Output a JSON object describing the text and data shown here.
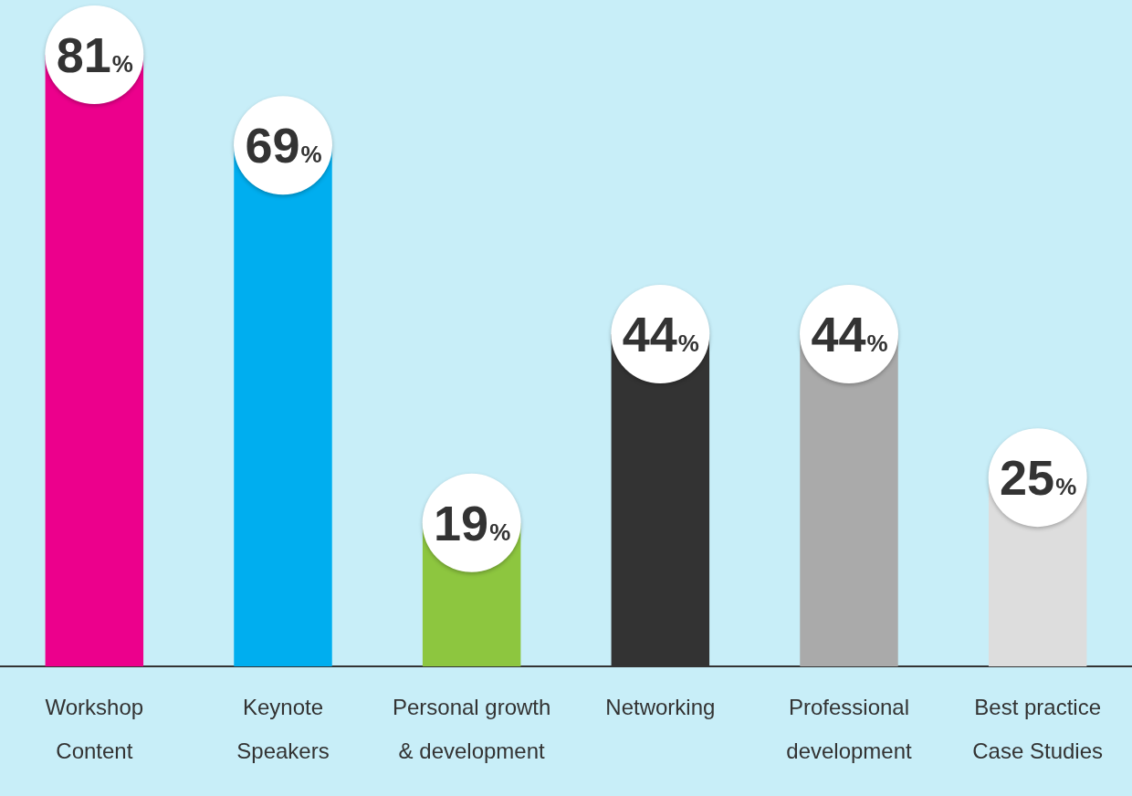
{
  "chart_data": {
    "type": "bar",
    "categories": [
      "Workshop Content",
      "Keynote Speakers",
      "Personal growth & development",
      "Networking",
      "Professional development",
      "Best practice Case Studies"
    ],
    "values": [
      81,
      69,
      19,
      44,
      44,
      25
    ],
    "colors": [
      "#ec008c",
      "#00aeef",
      "#8dc63f",
      "#333333",
      "#aaaaaa",
      "#dddddd"
    ],
    "value_labels": [
      "81%",
      "69%",
      "19%",
      "44%",
      "44%",
      "25%"
    ],
    "grid": false,
    "legend": false
  }
}
